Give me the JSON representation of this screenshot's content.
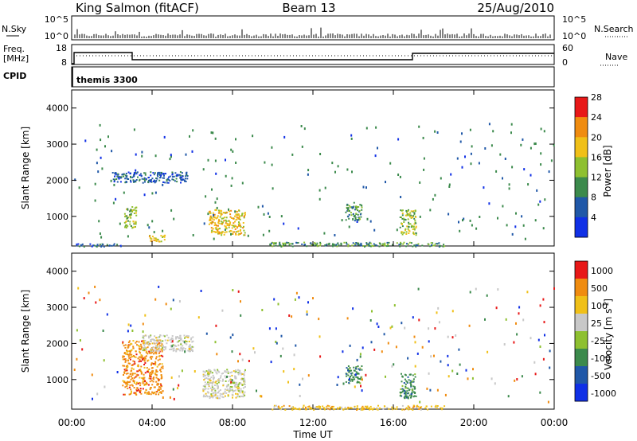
{
  "header": {
    "station": "King Salmon (fitACF)",
    "beam": "Beam 13",
    "date": "25/Aug/2010"
  },
  "noise_panel": {
    "left_label": "N.Sky",
    "right_label": "N.Search",
    "left_ticks": [
      "10^5",
      "10^0"
    ],
    "right_ticks": [
      "10^5",
      "10^0"
    ]
  },
  "freq_panel": {
    "left_label_1": "Freq.",
    "left_label_2": "[MHz]",
    "right_label": "Nave",
    "left_ticks": [
      "18",
      "8"
    ],
    "right_ticks": [
      "60",
      "0"
    ]
  },
  "cpid_panel": {
    "label": "CPID",
    "program": "themis 3300"
  },
  "x_axis": {
    "label": "Time UT",
    "ticks": [
      "00:00",
      "04:00",
      "08:00",
      "12:00",
      "16:00",
      "20:00",
      "00:00"
    ]
  },
  "chart_data": [
    {
      "type": "scatter",
      "name": "power-panel",
      "ylabel": "Slant Range [km]",
      "y_ticks": [
        "1000",
        "2000",
        "3000",
        "4000"
      ],
      "ylim": [
        180,
        4500
      ],
      "xlim_hours": [
        0,
        24
      ],
      "colorbar": {
        "label": "Power [dB]",
        "ticks": [
          "4",
          "8",
          "12",
          "16",
          "20",
          "24",
          "28"
        ],
        "colors": [
          "#1030e6",
          "#2058a8",
          "#3c8a4c",
          "#8ec030",
          "#f0c018",
          "#f08c10",
          "#e81818"
        ]
      },
      "regions": [
        {
          "x": [
            0.2,
            2.5
          ],
          "y": [
            180,
            260
          ],
          "level": 1
        },
        {
          "x": [
            2.0,
            5.8
          ],
          "y": [
            1950,
            2250
          ],
          "level": 1
        },
        {
          "x": [
            2.6,
            3.2
          ],
          "y": [
            700,
            1300
          ],
          "level": 3
        },
        {
          "x": [
            3.8,
            4.6
          ],
          "y": [
            300,
            500
          ],
          "level": 4
        },
        {
          "x": [
            6.8,
            8.6
          ],
          "y": [
            500,
            1200
          ],
          "level": 4
        },
        {
          "x": [
            13.6,
            14.4
          ],
          "y": [
            900,
            1400
          ],
          "level": 2
        },
        {
          "x": [
            16.3,
            17.1
          ],
          "y": [
            500,
            1200
          ],
          "level": 3
        },
        {
          "x": [
            9.8,
            18.5
          ],
          "y": [
            180,
            300
          ],
          "level": 2
        }
      ]
    },
    {
      "type": "scatter",
      "name": "velocity-panel",
      "ylabel": "Slant Range [km]",
      "y_ticks": [
        "1000",
        "2000",
        "3000",
        "4000"
      ],
      "ylim": [
        180,
        4500
      ],
      "xlim_hours": [
        0,
        24
      ],
      "colorbar": {
        "label": "Velocity [m s-1]",
        "ticks": [
          "1000",
          "500",
          "100",
          "25",
          "-25",
          "-100",
          "-500",
          "-1000"
        ],
        "colors": [
          "#1030e6",
          "#2058a8",
          "#3c8a4c",
          "#8ec030",
          "#c8c8c8",
          "#f0c018",
          "#f08c10",
          "#e81818"
        ]
      },
      "regions": [
        {
          "x": [
            2.5,
            4.5
          ],
          "y": [
            600,
            2100
          ],
          "level": -2
        },
        {
          "x": [
            3.5,
            6.0
          ],
          "y": [
            1800,
            2250
          ],
          "level": 0
        },
        {
          "x": [
            6.5,
            8.6
          ],
          "y": [
            500,
            1300
          ],
          "level": 0
        },
        {
          "x": [
            13.6,
            14.4
          ],
          "y": [
            900,
            1400
          ],
          "level": 2
        },
        {
          "x": [
            16.3,
            17.1
          ],
          "y": [
            500,
            1200
          ],
          "level": 2
        },
        {
          "x": [
            9.8,
            18.5
          ],
          "y": [
            180,
            300
          ],
          "level": -1
        }
      ]
    }
  ]
}
